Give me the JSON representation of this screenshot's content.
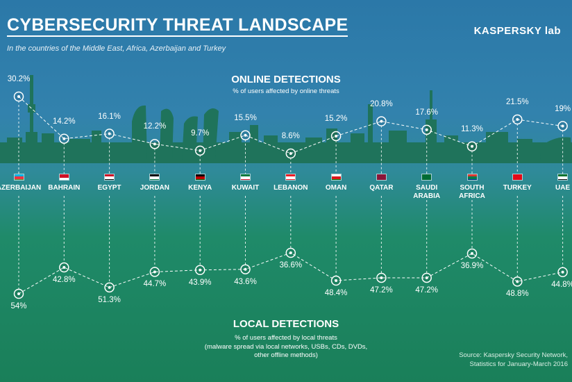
{
  "header": {
    "title": "CYBERSECURITY THREAT LANDSCAPE",
    "subtitle": "In the countries of the Middle East, Africa, Azerbaijan and Turkey",
    "brand": "KASPERSKY lab"
  },
  "online": {
    "title": "ONLINE DETECTIONS",
    "subtitle": "% of users affected by online threats"
  },
  "local": {
    "title": "LOCAL DETECTIONS",
    "subtitle_lines": [
      "% of users affected by local threats",
      "(malware spread via local networks, USBs, CDs, DVDs,",
      "other offline methods)"
    ]
  },
  "source_lines": [
    "Source: Kaspersky Security Network,",
    "Statistics for January-March 2016"
  ],
  "colors": {
    "sky_top": "#2b78a8",
    "ground": "#1a7f59",
    "skyline": "#1e6f57",
    "marker": "#ffffff"
  },
  "chart_data": {
    "type": "line",
    "categories": [
      "AZERBAIJAN",
      "BAHRAIN",
      "EGYPT",
      "JORDAN",
      "KENYA",
      "KUWAIT",
      "LEBANON",
      "OMAN",
      "QATAR",
      "SAUDI ARABIA",
      "SOUTH AFRICA",
      "TURKEY",
      "UAE"
    ],
    "series": [
      {
        "name": "ONLINE DETECTIONS",
        "values": [
          30.2,
          14.2,
          16.1,
          12.2,
          9.7,
          15.5,
          8.6,
          15.2,
          20.8,
          17.6,
          11.3,
          21.5,
          19
        ],
        "labels": [
          "30.2%",
          "14.2%",
          "16.1%",
          "12.2%",
          "9.7%",
          "15.5%",
          "8.6%",
          "15.2%",
          "20.8%",
          "17.6%",
          "11.3%",
          "21.5%",
          "19%"
        ]
      },
      {
        "name": "LOCAL DETECTIONS",
        "values": [
          54,
          42.8,
          51.3,
          44.7,
          43.9,
          43.6,
          36.6,
          48.4,
          47.2,
          47.2,
          36.9,
          48.8,
          44.8
        ],
        "labels": [
          "54%",
          "42.8%",
          "51.3%",
          "44.7%",
          "43.9%",
          "43.6%",
          "36.6%",
          "48.4%",
          "47.2%",
          "47.2%",
          "36.9%",
          "48.8%",
          "44.8%"
        ]
      }
    ],
    "country_labels": [
      [
        "AZERBAIJAN"
      ],
      [
        "BAHRAIN"
      ],
      [
        "EGYPT"
      ],
      [
        "JORDAN"
      ],
      [
        "KENYA"
      ],
      [
        "KUWAIT"
      ],
      [
        "LEBANON"
      ],
      [
        "OMAN"
      ],
      [
        "QATAR"
      ],
      [
        "SAUDI",
        "ARABIA"
      ],
      [
        "SOUTH",
        "AFRICA"
      ],
      [
        "TURKEY"
      ],
      [
        "UAE"
      ]
    ],
    "flags": [
      "flag-azerbaijan",
      "flag-bahrain",
      "flag-egypt",
      "flag-jordan",
      "flag-kenya",
      "flag-kuwait",
      "flag-lebanon",
      "flag-oman",
      "flag-qatar",
      "flag-saudi-arabia",
      "flag-south-africa",
      "flag-turkey",
      "flag-uae"
    ],
    "grid": false,
    "legend": "none"
  }
}
